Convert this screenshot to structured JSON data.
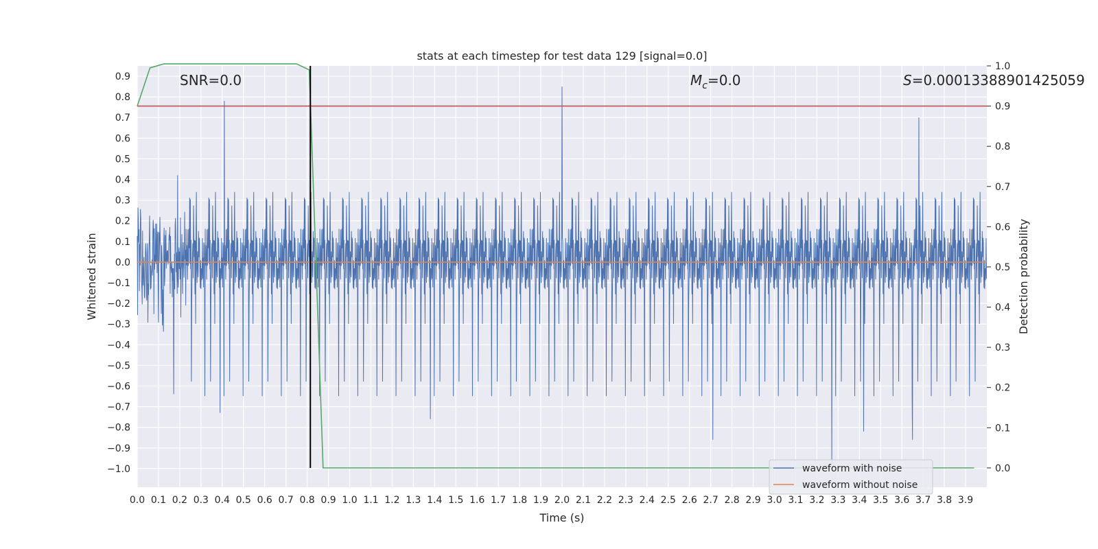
{
  "chart_data": {
    "type": "line",
    "title": "stats at each timestep for test data 129 [signal=0.0]",
    "xlabel": "Time (s)",
    "ylabel": "Whitened strain",
    "y2label": "Detection probability",
    "xlim": [
      0.0,
      4.0
    ],
    "ylim": [
      -1.09,
      0.95
    ],
    "y2lim": [
      -0.048,
      1.0
    ],
    "x_ticks": [
      0.0,
      0.1,
      0.2,
      0.3,
      0.4,
      0.5,
      0.6,
      0.7,
      0.8,
      0.9,
      1.0,
      1.1,
      1.2,
      1.3,
      1.4,
      1.5,
      1.6,
      1.7,
      1.8,
      1.9,
      2.0,
      2.1,
      2.2,
      2.3,
      2.4,
      2.5,
      2.6,
      2.7,
      2.8,
      2.9,
      3.0,
      3.1,
      3.2,
      3.3,
      3.4,
      3.5,
      3.6,
      3.7,
      3.8,
      3.9
    ],
    "y_ticks": [
      0.9,
      0.8,
      0.7,
      0.6,
      0.5,
      0.4,
      0.3,
      0.2,
      0.1,
      0.0,
      -0.1,
      -0.2,
      -0.3,
      -0.4,
      -0.5,
      -0.6,
      -0.7,
      -0.8,
      -0.9,
      -1.0
    ],
    "y2_ticks": [
      1.0,
      0.9,
      0.8,
      0.7,
      0.6,
      0.5,
      0.4,
      0.3,
      0.2,
      0.1,
      0.0
    ],
    "grid": true,
    "legend": {
      "placement": "lower-right",
      "entries": [
        {
          "name": "waveform with noise",
          "color": "#4c72b0"
        },
        {
          "name": "waveform without noise",
          "color": "#dd8452"
        }
      ]
    },
    "annotations": [
      {
        "text": "SNR=0.0"
      },
      {
        "text_main": "M",
        "text_sub": "c",
        "text_rest": "=0.0"
      },
      {
        "text_main": "S",
        "text_rest": "=0.00013388901425059"
      }
    ],
    "noise_envelope": {
      "color": "#4c72b0",
      "typical_range": [
        -0.35,
        0.35
      ],
      "spikes": [
        {
          "x": 0.41,
          "y": 0.78
        },
        {
          "x": 2.0,
          "y": 0.85
        },
        {
          "x": 3.68,
          "y": 0.7
        },
        {
          "x": 0.39,
          "y": -0.73
        },
        {
          "x": 1.38,
          "y": -0.76
        },
        {
          "x": 2.71,
          "y": -0.86
        },
        {
          "x": 3.27,
          "y": -0.98
        },
        {
          "x": 3.65,
          "y": -0.86
        },
        {
          "x": 3.42,
          "y": -0.82
        }
      ]
    },
    "series": [
      {
        "name": "waveform without noise",
        "axis": "left",
        "color": "#dd8452",
        "x": [
          0.0,
          4.0
        ],
        "y": [
          0.0,
          0.0
        ]
      },
      {
        "axis": "right",
        "color": "#55a868",
        "x": [
          0.0,
          0.06,
          0.125,
          0.25,
          0.5,
          0.75,
          0.81,
          0.875,
          3.94
        ],
        "y": [
          0.9,
          0.995,
          1.005,
          1.005,
          1.005,
          1.005,
          0.99,
          0.0,
          0.0
        ]
      },
      {
        "axis": "right",
        "color": "#c44e52",
        "x": [
          0.0,
          4.0
        ],
        "y": [
          0.9,
          0.9
        ]
      },
      {
        "axis": "right",
        "color": "#000000",
        "x": [
          0.815,
          0.815
        ],
        "y": [
          0.0,
          1.0
        ]
      }
    ]
  }
}
